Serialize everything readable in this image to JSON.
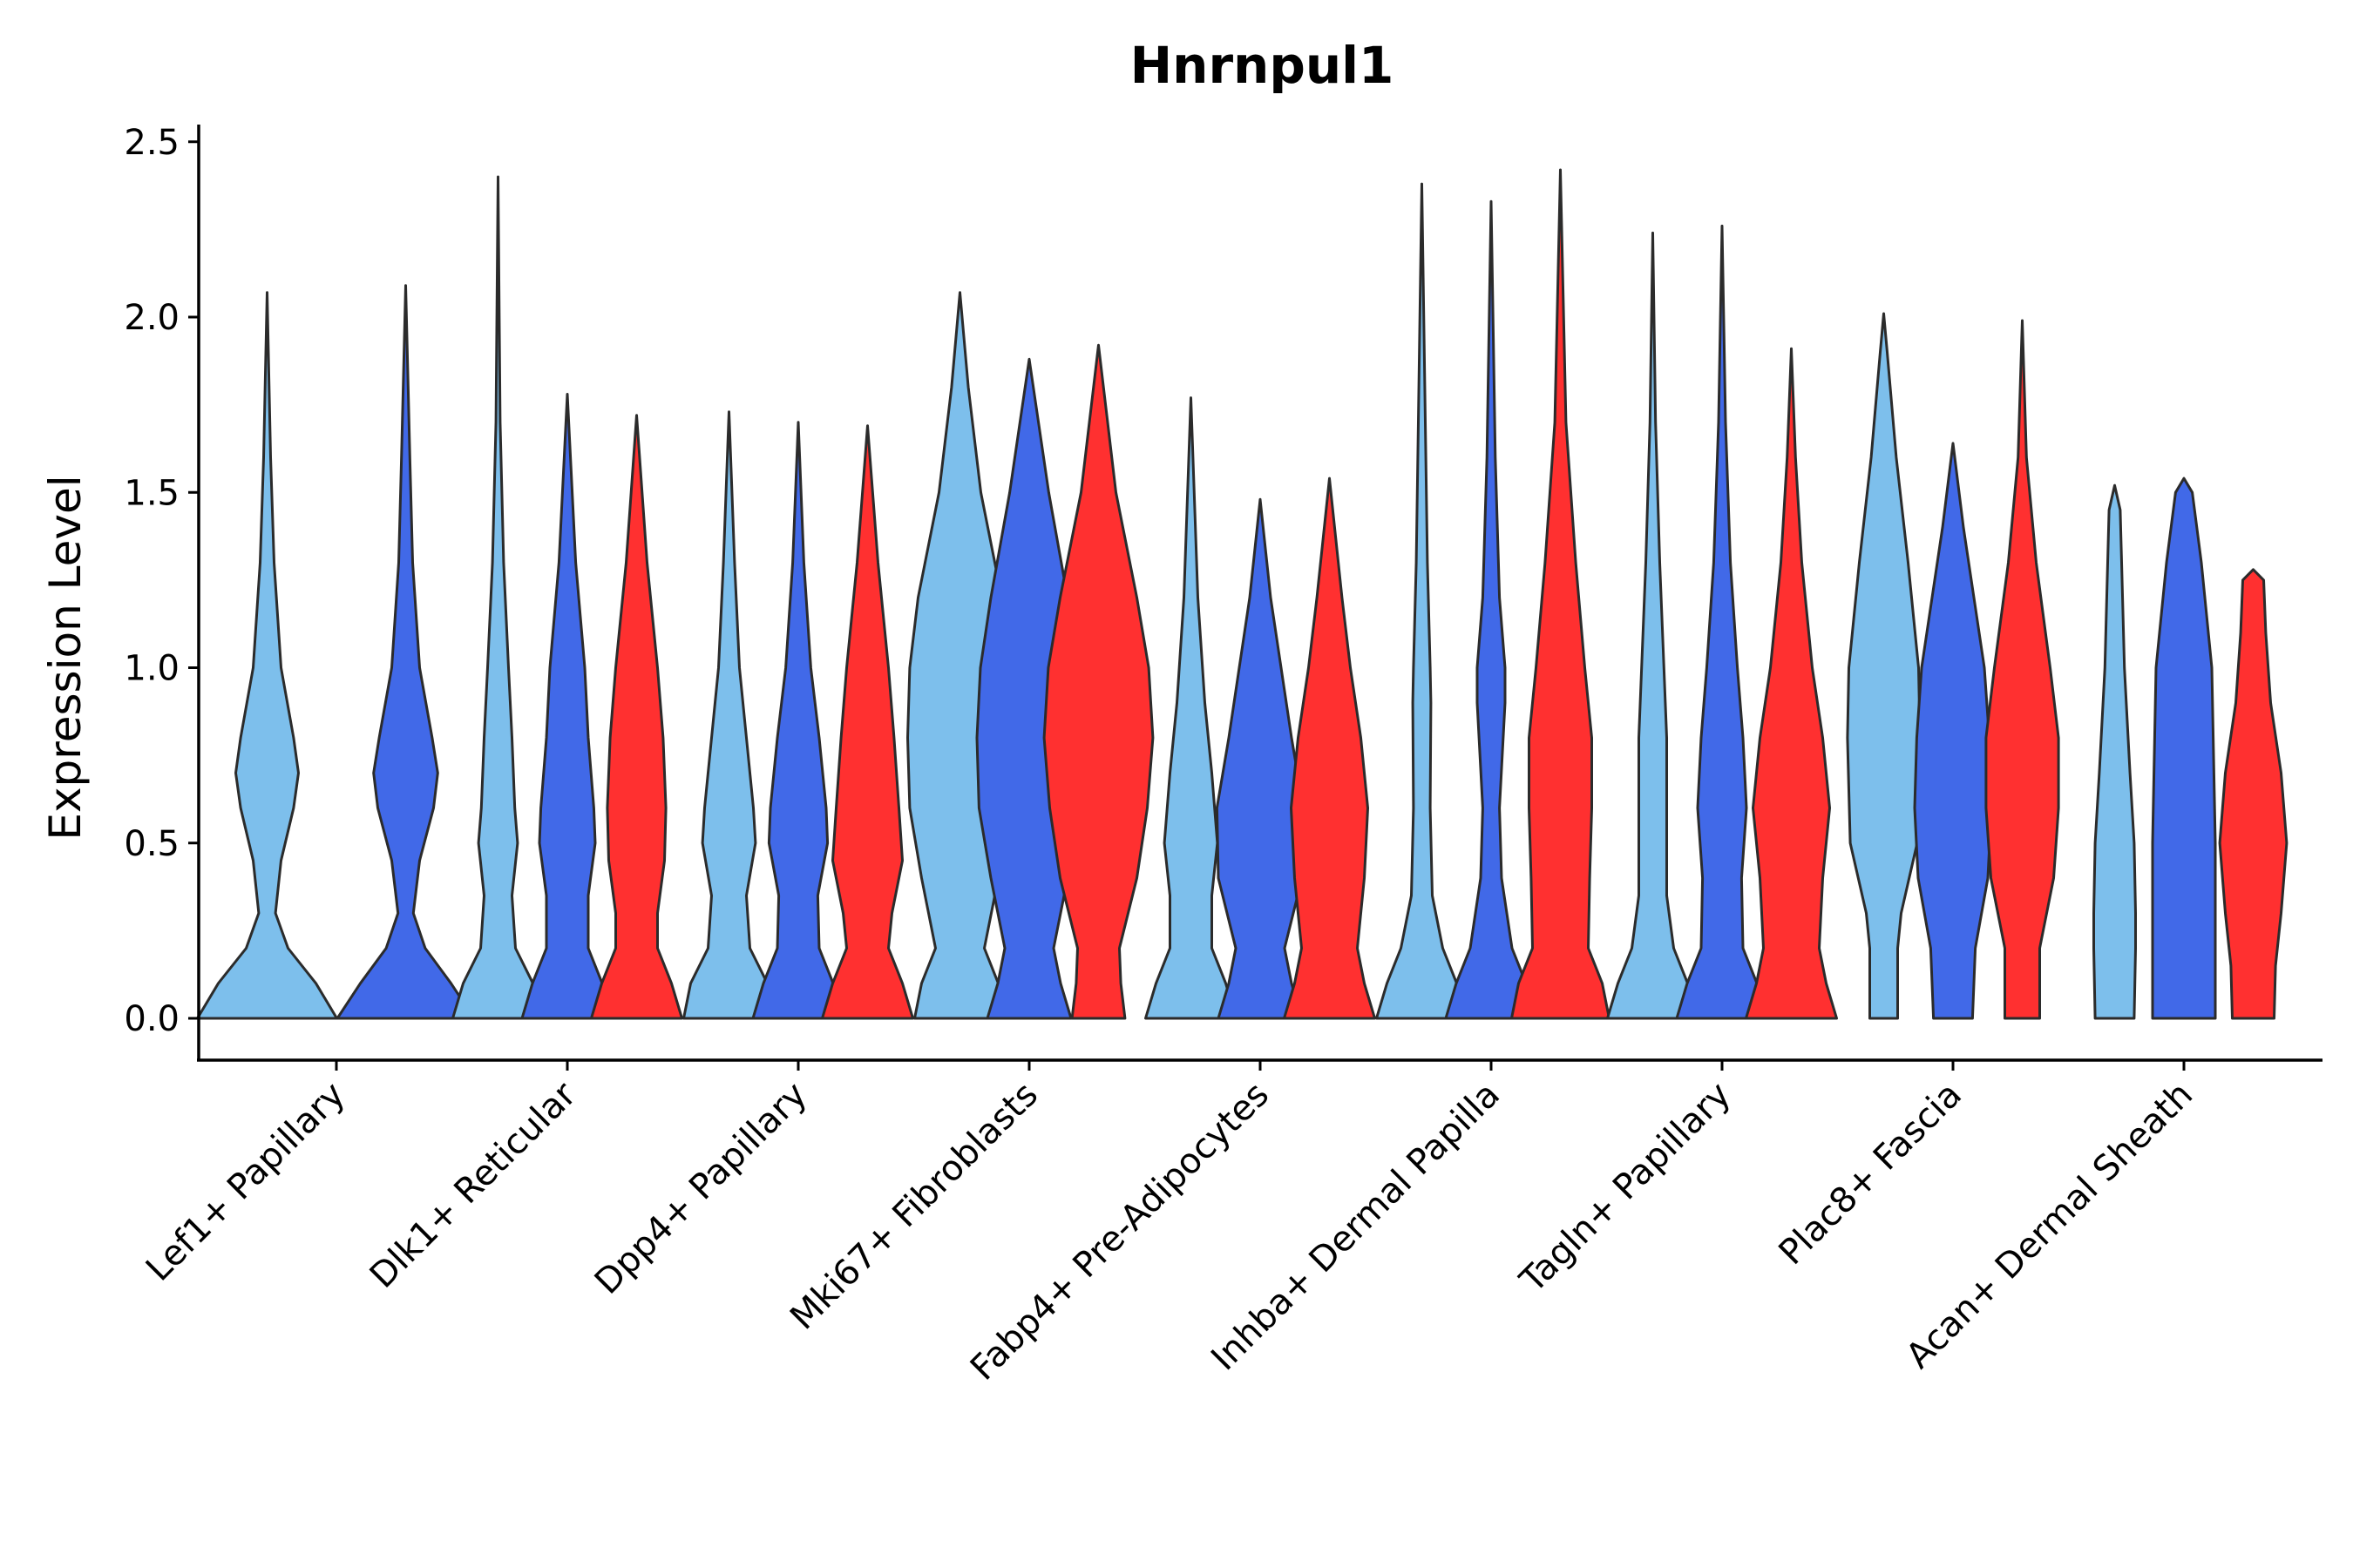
{
  "chart_data": {
    "type": "violin",
    "title": "Hnrnpul1",
    "xlabel": "",
    "ylabel": "Expression Level",
    "ylim": [
      -0.12,
      2.55
    ],
    "yticks": [
      0.0,
      0.5,
      1.0,
      1.5,
      2.0,
      2.5
    ],
    "ytick_labels": [
      "0.0",
      "0.5",
      "1.0",
      "1.5",
      "2.0",
      "2.5"
    ],
    "categories": [
      "Lef1+ Papillary",
      "Dlk1+ Reticular",
      "Dpp4+ Papillary",
      "Mki67+ Fibroblasts",
      "Fabp4+ Pre-Adipocytes",
      "Inhba+ Dermal Papilla",
      "Tagln+ Papillary",
      "Plac8+ Fascia",
      "Acan+ Dermal Sheath"
    ],
    "series_colors": [
      "#7dbfec",
      "#4169e8",
      "#ff3030"
    ],
    "outline_color": "#2b2b2b",
    "violins": [
      {
        "category": 0,
        "offset": -0.3,
        "color": 0,
        "max": 2.07,
        "profile": [
          [
            0.0,
            1.0
          ],
          [
            0.1,
            0.7
          ],
          [
            0.2,
            0.3
          ],
          [
            0.3,
            0.12
          ],
          [
            0.45,
            0.2
          ],
          [
            0.6,
            0.38
          ],
          [
            0.7,
            0.45
          ],
          [
            0.8,
            0.38
          ],
          [
            1.0,
            0.2
          ],
          [
            1.3,
            0.1
          ],
          [
            1.6,
            0.05
          ],
          [
            2.07,
            0.0
          ]
        ]
      },
      {
        "category": 0,
        "offset": 0.3,
        "color": 1,
        "max": 2.09,
        "profile": [
          [
            0.0,
            0.98
          ],
          [
            0.1,
            0.65
          ],
          [
            0.2,
            0.28
          ],
          [
            0.3,
            0.11
          ],
          [
            0.45,
            0.2
          ],
          [
            0.6,
            0.4
          ],
          [
            0.7,
            0.46
          ],
          [
            0.8,
            0.38
          ],
          [
            1.0,
            0.2
          ],
          [
            1.3,
            0.1
          ],
          [
            1.6,
            0.06
          ],
          [
            2.09,
            0.0
          ]
        ]
      },
      {
        "category": 1,
        "offset": -0.3,
        "color": 0,
        "max": 2.4,
        "profile": [
          [
            0.0,
            0.65
          ],
          [
            0.1,
            0.5
          ],
          [
            0.2,
            0.25
          ],
          [
            0.35,
            0.2
          ],
          [
            0.5,
            0.28
          ],
          [
            0.6,
            0.24
          ],
          [
            0.8,
            0.2
          ],
          [
            1.0,
            0.15
          ],
          [
            1.3,
            0.08
          ],
          [
            1.7,
            0.03
          ],
          [
            2.4,
            0.0
          ]
        ]
      },
      {
        "category": 1,
        "offset": 0.0,
        "color": 1,
        "max": 1.78,
        "profile": [
          [
            0.0,
            0.65
          ],
          [
            0.1,
            0.5
          ],
          [
            0.2,
            0.3
          ],
          [
            0.35,
            0.3
          ],
          [
            0.5,
            0.4
          ],
          [
            0.6,
            0.38
          ],
          [
            0.8,
            0.3
          ],
          [
            1.0,
            0.25
          ],
          [
            1.3,
            0.12
          ],
          [
            1.78,
            0.0
          ]
        ]
      },
      {
        "category": 1,
        "offset": 0.3,
        "color": 2,
        "max": 1.72,
        "profile": [
          [
            0.0,
            0.65
          ],
          [
            0.1,
            0.5
          ],
          [
            0.2,
            0.3
          ],
          [
            0.3,
            0.3
          ],
          [
            0.45,
            0.4
          ],
          [
            0.6,
            0.42
          ],
          [
            0.8,
            0.38
          ],
          [
            1.0,
            0.3
          ],
          [
            1.3,
            0.15
          ],
          [
            1.72,
            0.0
          ]
        ]
      },
      {
        "category": 2,
        "offset": -0.3,
        "color": 0,
        "max": 1.73,
        "profile": [
          [
            0.0,
            0.65
          ],
          [
            0.1,
            0.55
          ],
          [
            0.2,
            0.3
          ],
          [
            0.35,
            0.25
          ],
          [
            0.5,
            0.38
          ],
          [
            0.6,
            0.35
          ],
          [
            0.8,
            0.25
          ],
          [
            1.0,
            0.15
          ],
          [
            1.3,
            0.08
          ],
          [
            1.73,
            0.0
          ]
        ]
      },
      {
        "category": 2,
        "offset": 0.0,
        "color": 1,
        "max": 1.7,
        "profile": [
          [
            0.0,
            0.65
          ],
          [
            0.1,
            0.5
          ],
          [
            0.2,
            0.3
          ],
          [
            0.35,
            0.28
          ],
          [
            0.5,
            0.42
          ],
          [
            0.6,
            0.4
          ],
          [
            0.8,
            0.3
          ],
          [
            1.0,
            0.18
          ],
          [
            1.3,
            0.08
          ],
          [
            1.7,
            0.0
          ]
        ]
      },
      {
        "category": 2,
        "offset": 0.3,
        "color": 2,
        "max": 1.69,
        "profile": [
          [
            0.0,
            0.65
          ],
          [
            0.1,
            0.5
          ],
          [
            0.2,
            0.3
          ],
          [
            0.3,
            0.35
          ],
          [
            0.45,
            0.5
          ],
          [
            0.6,
            0.45
          ],
          [
            0.8,
            0.38
          ],
          [
            1.0,
            0.3
          ],
          [
            1.3,
            0.15
          ],
          [
            1.69,
            0.0
          ]
        ]
      },
      {
        "category": 3,
        "offset": -0.3,
        "color": 0,
        "max": 2.07,
        "profile": [
          [
            0.0,
            0.65
          ],
          [
            0.1,
            0.55
          ],
          [
            0.2,
            0.35
          ],
          [
            0.4,
            0.55
          ],
          [
            0.6,
            0.72
          ],
          [
            0.8,
            0.75
          ],
          [
            1.0,
            0.72
          ],
          [
            1.2,
            0.6
          ],
          [
            1.5,
            0.3
          ],
          [
            1.8,
            0.12
          ],
          [
            2.07,
            0.0
          ]
        ]
      },
      {
        "category": 3,
        "offset": 0.0,
        "color": 1,
        "max": 1.88,
        "profile": [
          [
            0.0,
            0.6
          ],
          [
            0.1,
            0.45
          ],
          [
            0.2,
            0.35
          ],
          [
            0.4,
            0.55
          ],
          [
            0.6,
            0.72
          ],
          [
            0.8,
            0.75
          ],
          [
            1.0,
            0.7
          ],
          [
            1.2,
            0.55
          ],
          [
            1.5,
            0.28
          ],
          [
            1.88,
            0.0
          ]
        ]
      },
      {
        "category": 3,
        "offset": 0.3,
        "color": 2,
        "max": 1.92,
        "profile": [
          [
            0.0,
            0.38
          ],
          [
            0.1,
            0.32
          ],
          [
            0.2,
            0.3
          ],
          [
            0.4,
            0.55
          ],
          [
            0.6,
            0.7
          ],
          [
            0.8,
            0.78
          ],
          [
            1.0,
            0.72
          ],
          [
            1.2,
            0.55
          ],
          [
            1.5,
            0.25
          ],
          [
            1.92,
            0.0
          ]
        ]
      },
      {
        "category": 4,
        "offset": -0.3,
        "color": 0,
        "max": 1.77,
        "profile": [
          [
            0.0,
            0.65
          ],
          [
            0.1,
            0.5
          ],
          [
            0.2,
            0.3
          ],
          [
            0.35,
            0.3
          ],
          [
            0.5,
            0.38
          ],
          [
            0.7,
            0.3
          ],
          [
            0.9,
            0.2
          ],
          [
            1.2,
            0.1
          ],
          [
            1.77,
            0.0
          ]
        ]
      },
      {
        "category": 4,
        "offset": 0.0,
        "color": 1,
        "max": 1.48,
        "profile": [
          [
            0.0,
            0.6
          ],
          [
            0.1,
            0.45
          ],
          [
            0.2,
            0.35
          ],
          [
            0.4,
            0.6
          ],
          [
            0.6,
            0.62
          ],
          [
            0.8,
            0.45
          ],
          [
            1.0,
            0.3
          ],
          [
            1.2,
            0.15
          ],
          [
            1.48,
            0.0
          ]
        ]
      },
      {
        "category": 4,
        "offset": 0.3,
        "color": 2,
        "max": 1.54,
        "profile": [
          [
            0.0,
            0.65
          ],
          [
            0.1,
            0.5
          ],
          [
            0.2,
            0.4
          ],
          [
            0.4,
            0.5
          ],
          [
            0.6,
            0.55
          ],
          [
            0.8,
            0.45
          ],
          [
            1.0,
            0.3
          ],
          [
            1.2,
            0.18
          ],
          [
            1.54,
            0.0
          ]
        ]
      },
      {
        "category": 5,
        "offset": -0.3,
        "color": 0,
        "max": 2.38,
        "profile": [
          [
            0.0,
            0.65
          ],
          [
            0.1,
            0.5
          ],
          [
            0.2,
            0.3
          ],
          [
            0.35,
            0.15
          ],
          [
            0.6,
            0.12
          ],
          [
            0.9,
            0.13
          ],
          [
            1.0,
            0.12
          ],
          [
            1.3,
            0.08
          ],
          [
            1.7,
            0.05
          ],
          [
            2.38,
            0.0
          ]
        ]
      },
      {
        "category": 5,
        "offset": 0.0,
        "color": 1,
        "max": 2.33,
        "profile": [
          [
            0.0,
            0.65
          ],
          [
            0.1,
            0.5
          ],
          [
            0.2,
            0.3
          ],
          [
            0.4,
            0.15
          ],
          [
            0.6,
            0.12
          ],
          [
            0.9,
            0.2
          ],
          [
            1.0,
            0.2
          ],
          [
            1.2,
            0.12
          ],
          [
            1.6,
            0.06
          ],
          [
            2.33,
            0.0
          ]
        ]
      },
      {
        "category": 5,
        "offset": 0.3,
        "color": 2,
        "max": 2.42,
        "profile": [
          [
            0.0,
            0.7
          ],
          [
            0.1,
            0.6
          ],
          [
            0.2,
            0.4
          ],
          [
            0.4,
            0.42
          ],
          [
            0.6,
            0.45
          ],
          [
            0.8,
            0.45
          ],
          [
            1.0,
            0.35
          ],
          [
            1.3,
            0.22
          ],
          [
            1.7,
            0.08
          ],
          [
            2.42,
            0.0
          ]
        ]
      },
      {
        "category": 6,
        "offset": -0.3,
        "color": 0,
        "max": 2.24,
        "profile": [
          [
            0.0,
            0.65
          ],
          [
            0.1,
            0.5
          ],
          [
            0.2,
            0.3
          ],
          [
            0.35,
            0.2
          ],
          [
            0.5,
            0.2
          ],
          [
            0.8,
            0.2
          ],
          [
            1.0,
            0.16
          ],
          [
            1.3,
            0.1
          ],
          [
            1.7,
            0.04
          ],
          [
            2.24,
            0.0
          ]
        ]
      },
      {
        "category": 6,
        "offset": 0.0,
        "color": 1,
        "max": 2.26,
        "profile": [
          [
            0.0,
            0.65
          ],
          [
            0.1,
            0.5
          ],
          [
            0.2,
            0.3
          ],
          [
            0.4,
            0.28
          ],
          [
            0.6,
            0.35
          ],
          [
            0.8,
            0.3
          ],
          [
            1.0,
            0.22
          ],
          [
            1.3,
            0.12
          ],
          [
            1.7,
            0.05
          ],
          [
            2.26,
            0.0
          ]
        ]
      },
      {
        "category": 6,
        "offset": 0.3,
        "color": 2,
        "max": 1.91,
        "profile": [
          [
            0.0,
            0.65
          ],
          [
            0.1,
            0.5
          ],
          [
            0.2,
            0.4
          ],
          [
            0.4,
            0.45
          ],
          [
            0.6,
            0.55
          ],
          [
            0.8,
            0.45
          ],
          [
            1.0,
            0.3
          ],
          [
            1.3,
            0.15
          ],
          [
            1.6,
            0.06
          ],
          [
            1.91,
            0.0
          ]
        ]
      },
      {
        "category": 7,
        "offset": -0.3,
        "color": 0,
        "max": 2.01,
        "profile": [
          [
            0.0,
            0.2
          ],
          [
            0.2,
            0.2
          ],
          [
            0.3,
            0.25
          ],
          [
            0.5,
            0.48
          ],
          [
            0.8,
            0.52
          ],
          [
            1.0,
            0.5
          ],
          [
            1.3,
            0.35
          ],
          [
            1.6,
            0.18
          ],
          [
            1.9,
            0.05
          ],
          [
            2.01,
            0.0
          ]
        ]
      },
      {
        "category": 7,
        "offset": 0.0,
        "color": 1,
        "max": 1.64,
        "profile": [
          [
            0.0,
            0.28
          ],
          [
            0.2,
            0.32
          ],
          [
            0.4,
            0.5
          ],
          [
            0.6,
            0.55
          ],
          [
            0.8,
            0.52
          ],
          [
            1.0,
            0.45
          ],
          [
            1.2,
            0.3
          ],
          [
            1.4,
            0.15
          ],
          [
            1.64,
            0.0
          ]
        ]
      },
      {
        "category": 7,
        "offset": 0.3,
        "color": 2,
        "max": 1.99,
        "profile": [
          [
            0.0,
            0.25
          ],
          [
            0.2,
            0.25
          ],
          [
            0.4,
            0.45
          ],
          [
            0.6,
            0.52
          ],
          [
            0.8,
            0.52
          ],
          [
            1.0,
            0.4
          ],
          [
            1.3,
            0.2
          ],
          [
            1.6,
            0.06
          ],
          [
            1.99,
            0.0
          ]
        ]
      },
      {
        "category": 8,
        "offset": -0.3,
        "color": 0,
        "max": 1.52,
        "profile": [
          [
            0.0,
            0.28
          ],
          [
            0.2,
            0.3
          ],
          [
            0.3,
            0.3
          ],
          [
            0.5,
            0.28
          ],
          [
            0.7,
            0.22
          ],
          [
            1.0,
            0.14
          ],
          [
            1.3,
            0.1
          ],
          [
            1.45,
            0.08
          ],
          [
            1.52,
            0.0
          ]
        ]
      },
      {
        "category": 8,
        "offset": 0.0,
        "color": 1,
        "max": 1.54,
        "profile": [
          [
            0.0,
            0.45
          ],
          [
            0.2,
            0.45
          ],
          [
            0.5,
            0.45
          ],
          [
            0.8,
            0.42
          ],
          [
            1.0,
            0.4
          ],
          [
            1.3,
            0.25
          ],
          [
            1.5,
            0.12
          ],
          [
            1.54,
            0.0
          ]
        ]
      },
      {
        "category": 8,
        "offset": 0.3,
        "color": 2,
        "max": 1.28,
        "profile": [
          [
            0.0,
            0.3
          ],
          [
            0.15,
            0.32
          ],
          [
            0.3,
            0.4
          ],
          [
            0.5,
            0.48
          ],
          [
            0.7,
            0.4
          ],
          [
            0.9,
            0.25
          ],
          [
            1.1,
            0.18
          ],
          [
            1.25,
            0.15
          ],
          [
            1.28,
            0.0
          ]
        ]
      }
    ]
  }
}
